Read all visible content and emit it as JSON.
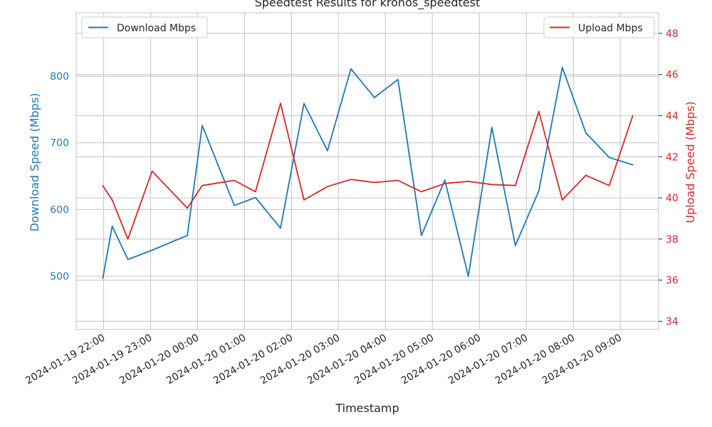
{
  "chart_data": {
    "type": "line",
    "title": "Speedtest Results for kronos_speedtest",
    "xlabel": "Timestamp",
    "ylabel_left": "Download Speed (Mbps)",
    "ylabel_right": "Upload Speed (Mbps)",
    "x_ticks": [
      "2024-01-19 22:00",
      "2024-01-19 23:00",
      "2024-01-20 00:00",
      "2024-01-20 01:00",
      "2024-01-20 02:00",
      "2024-01-20 03:00",
      "2024-01-20 04:00",
      "2024-01-20 05:00",
      "2024-01-20 06:00",
      "2024-01-20 07:00",
      "2024-01-20 08:00",
      "2024-01-20 09:00"
    ],
    "xlim": [
      "2024-01-19 21:25",
      "2024-01-20 09:49"
    ],
    "ylim_left": [
      420,
      895
    ],
    "yticks_left": [
      500,
      600,
      700,
      800
    ],
    "ylim_right": [
      33.6,
      49.0
    ],
    "yticks_right": [
      34,
      36,
      38,
      40,
      42,
      44,
      46,
      48
    ],
    "grid": true,
    "colors": {
      "download": "#1f77b4",
      "upload": "#d62728",
      "grid": "#cccccc",
      "text": "#262626"
    },
    "legend_left": {
      "label": "Download Mbps",
      "placement": "top-left"
    },
    "legend_right": {
      "label": "Upload Mbps",
      "placement": "top-right"
    },
    "series": [
      {
        "name": "Download Mbps",
        "axis": "left",
        "x": [
          "2024-01-19 21:59",
          "2024-01-19 22:11",
          "2024-01-19 22:31",
          "2024-01-19 23:02",
          "2024-01-19 23:47",
          "2024-01-20 00:06",
          "2024-01-20 00:47",
          "2024-01-20 01:14",
          "2024-01-20 01:46",
          "2024-01-20 02:16",
          "2024-01-20 02:46",
          "2024-01-20 03:16",
          "2024-01-20 03:46",
          "2024-01-20 04:16",
          "2024-01-20 04:46",
          "2024-01-20 05:16",
          "2024-01-20 05:46",
          "2024-01-20 06:16",
          "2024-01-20 06:46",
          "2024-01-20 07:16",
          "2024-01-20 07:46",
          "2024-01-20 08:16",
          "2024-01-20 08:46",
          "2024-01-20 09:16"
        ],
        "y": [
          497,
          575,
          525,
          539,
          561,
          726,
          606,
          618,
          572,
          759,
          688,
          811,
          768,
          795,
          561,
          644,
          500,
          723,
          546,
          628,
          813,
          715,
          678,
          667
        ]
      },
      {
        "name": "Upload Mbps",
        "axis": "right",
        "x": [
          "2024-01-19 21:59",
          "2024-01-19 22:11",
          "2024-01-19 22:31",
          "2024-01-19 23:02",
          "2024-01-19 23:47",
          "2024-01-20 00:06",
          "2024-01-20 00:47",
          "2024-01-20 01:14",
          "2024-01-20 01:46",
          "2024-01-20 02:16",
          "2024-01-20 02:46",
          "2024-01-20 03:16",
          "2024-01-20 03:46",
          "2024-01-20 04:16",
          "2024-01-20 04:46",
          "2024-01-20 05:16",
          "2024-01-20 05:46",
          "2024-01-20 06:16",
          "2024-01-20 06:46",
          "2024-01-20 07:16",
          "2024-01-20 07:46",
          "2024-01-20 08:16",
          "2024-01-20 08:46",
          "2024-01-20 09:16"
        ],
        "y": [
          40.6,
          39.9,
          38.0,
          41.3,
          39.5,
          40.6,
          40.85,
          40.3,
          44.6,
          39.9,
          40.55,
          40.9,
          40.75,
          40.85,
          40.3,
          40.7,
          40.8,
          40.65,
          40.6,
          44.2,
          39.9,
          41.1,
          40.6,
          44.0
        ]
      }
    ]
  }
}
